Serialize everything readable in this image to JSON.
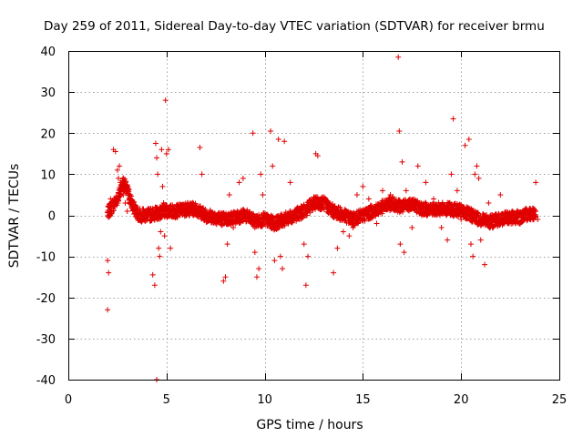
{
  "chart_data": {
    "type": "scatter",
    "title": "Day 259 of 2011, Sidereal Day-to-day VTEC variation (SDTVAR) for receiver brmu",
    "xlabel": "GPS time / hours",
    "ylabel": "SDTVAR / TECUs",
    "xlim": [
      0,
      25
    ],
    "ylim": [
      -40,
      40
    ],
    "xticks": [
      0,
      5,
      10,
      15,
      20,
      25
    ],
    "yticks": [
      -40,
      -30,
      -20,
      -10,
      0,
      10,
      20,
      30,
      40
    ],
    "x_tick_labels": [
      "0",
      "5",
      "10",
      "15",
      "20",
      "25"
    ],
    "y_tick_labels": [
      "-40",
      "-30",
      "-20",
      "-10",
      "0",
      "10",
      "20",
      "30",
      "40"
    ],
    "grid": true,
    "marker": "+",
    "color": "#e00000",
    "series": [
      {
        "name": "SDTVAR",
        "points": [
          [
            2.0,
            -23
          ],
          [
            2.0,
            -11
          ],
          [
            2.05,
            -14
          ],
          [
            2.1,
            2
          ],
          [
            2.15,
            4
          ],
          [
            2.2,
            1
          ],
          [
            2.3,
            16
          ],
          [
            2.4,
            15.5
          ],
          [
            2.5,
            11
          ],
          [
            2.55,
            9
          ],
          [
            2.6,
            12
          ],
          [
            2.65,
            8
          ],
          [
            2.7,
            7
          ],
          [
            2.8,
            5
          ],
          [
            2.9,
            3
          ],
          [
            3.0,
            1
          ],
          [
            4.3,
            -14.5
          ],
          [
            4.4,
            -17
          ],
          [
            4.45,
            17.5
          ],
          [
            4.5,
            14
          ],
          [
            4.55,
            10
          ],
          [
            4.6,
            -8
          ],
          [
            4.65,
            -10
          ],
          [
            4.7,
            -4
          ],
          [
            4.75,
            16
          ],
          [
            4.8,
            7
          ],
          [
            4.85,
            3
          ],
          [
            4.9,
            -5
          ],
          [
            4.95,
            28
          ],
          [
            5.0,
            15
          ],
          [
            5.1,
            16
          ],
          [
            5.2,
            -8
          ],
          [
            4.5,
            -40
          ],
          [
            6.7,
            16.5
          ],
          [
            6.8,
            10
          ],
          [
            7.9,
            -16
          ],
          [
            8.0,
            -15
          ],
          [
            8.1,
            -7
          ],
          [
            8.2,
            5
          ],
          [
            8.4,
            -3
          ],
          [
            8.7,
            8
          ],
          [
            8.9,
            9
          ],
          [
            9.4,
            20
          ],
          [
            9.5,
            -9
          ],
          [
            9.6,
            -15
          ],
          [
            9.7,
            -13
          ],
          [
            9.8,
            10
          ],
          [
            9.9,
            5
          ],
          [
            10.3,
            20.5
          ],
          [
            10.4,
            12
          ],
          [
            10.5,
            -11
          ],
          [
            10.7,
            18.5
          ],
          [
            10.8,
            -10
          ],
          [
            10.9,
            -13
          ],
          [
            11.0,
            18
          ],
          [
            11.3,
            8
          ],
          [
            12.0,
            -7
          ],
          [
            12.1,
            -17
          ],
          [
            12.2,
            -10
          ],
          [
            12.6,
            15
          ],
          [
            12.7,
            14.5
          ],
          [
            13.5,
            -14
          ],
          [
            13.7,
            -8
          ],
          [
            14.0,
            -4
          ],
          [
            14.3,
            -5
          ],
          [
            14.5,
            -3
          ],
          [
            14.7,
            5
          ],
          [
            15.0,
            7
          ],
          [
            15.3,
            4
          ],
          [
            15.7,
            -2
          ],
          [
            16.0,
            6
          ],
          [
            16.4,
            5
          ],
          [
            16.8,
            38.5
          ],
          [
            16.85,
            20.5
          ],
          [
            16.9,
            -7
          ],
          [
            17.0,
            13
          ],
          [
            17.1,
            -9
          ],
          [
            17.2,
            6
          ],
          [
            17.5,
            -3
          ],
          [
            17.8,
            12
          ],
          [
            18.2,
            8
          ],
          [
            18.6,
            4
          ],
          [
            19.0,
            -3
          ],
          [
            19.3,
            -6
          ],
          [
            19.5,
            10
          ],
          [
            19.6,
            23.5
          ],
          [
            19.8,
            6
          ],
          [
            20.0,
            -1
          ],
          [
            20.2,
            17
          ],
          [
            20.4,
            18.5
          ],
          [
            20.5,
            -7
          ],
          [
            20.6,
            -10
          ],
          [
            20.7,
            10
          ],
          [
            20.8,
            12
          ],
          [
            20.9,
            9
          ],
          [
            21.0,
            -6
          ],
          [
            21.2,
            -12
          ],
          [
            21.4,
            3
          ],
          [
            21.6,
            -3
          ],
          [
            22.0,
            5
          ],
          [
            22.4,
            -1
          ],
          [
            23.0,
            -2
          ],
          [
            23.5,
            1
          ],
          [
            23.8,
            8
          ],
          [
            23.9,
            -1
          ]
        ],
        "dense_band": [
          [
            2.0,
            0.5
          ],
          [
            2.5,
            4
          ],
          [
            2.8,
            8
          ],
          [
            3.0,
            6
          ],
          [
            3.3,
            2
          ],
          [
            3.6,
            0
          ],
          [
            4.0,
            0
          ],
          [
            4.5,
            0.5
          ],
          [
            5.0,
            1
          ],
          [
            5.5,
            1
          ],
          [
            6.0,
            1.5
          ],
          [
            6.5,
            1.5
          ],
          [
            7.0,
            0
          ],
          [
            7.5,
            -0.5
          ],
          [
            8.0,
            -1
          ],
          [
            8.5,
            -0.5
          ],
          [
            9.0,
            0
          ],
          [
            9.5,
            -1.5
          ],
          [
            10.0,
            -1
          ],
          [
            10.5,
            -2
          ],
          [
            11.0,
            -1
          ],
          [
            11.5,
            0
          ],
          [
            12.0,
            1
          ],
          [
            12.5,
            3
          ],
          [
            13.0,
            3
          ],
          [
            13.5,
            1
          ],
          [
            14.0,
            0
          ],
          [
            14.5,
            -1
          ],
          [
            15.0,
            0
          ],
          [
            15.5,
            1
          ],
          [
            16.0,
            2
          ],
          [
            16.5,
            3
          ],
          [
            17.0,
            2
          ],
          [
            17.5,
            3
          ],
          [
            18.0,
            1.5
          ],
          [
            18.5,
            1.5
          ],
          [
            19.0,
            1.5
          ],
          [
            19.5,
            1.5
          ],
          [
            20.0,
            1
          ],
          [
            20.5,
            0
          ],
          [
            21.0,
            -1
          ],
          [
            21.5,
            -1.5
          ],
          [
            22.0,
            -1
          ],
          [
            22.5,
            -0.5
          ],
          [
            23.0,
            -0.5
          ],
          [
            23.5,
            0.5
          ],
          [
            23.8,
            0.5
          ]
        ]
      }
    ]
  }
}
